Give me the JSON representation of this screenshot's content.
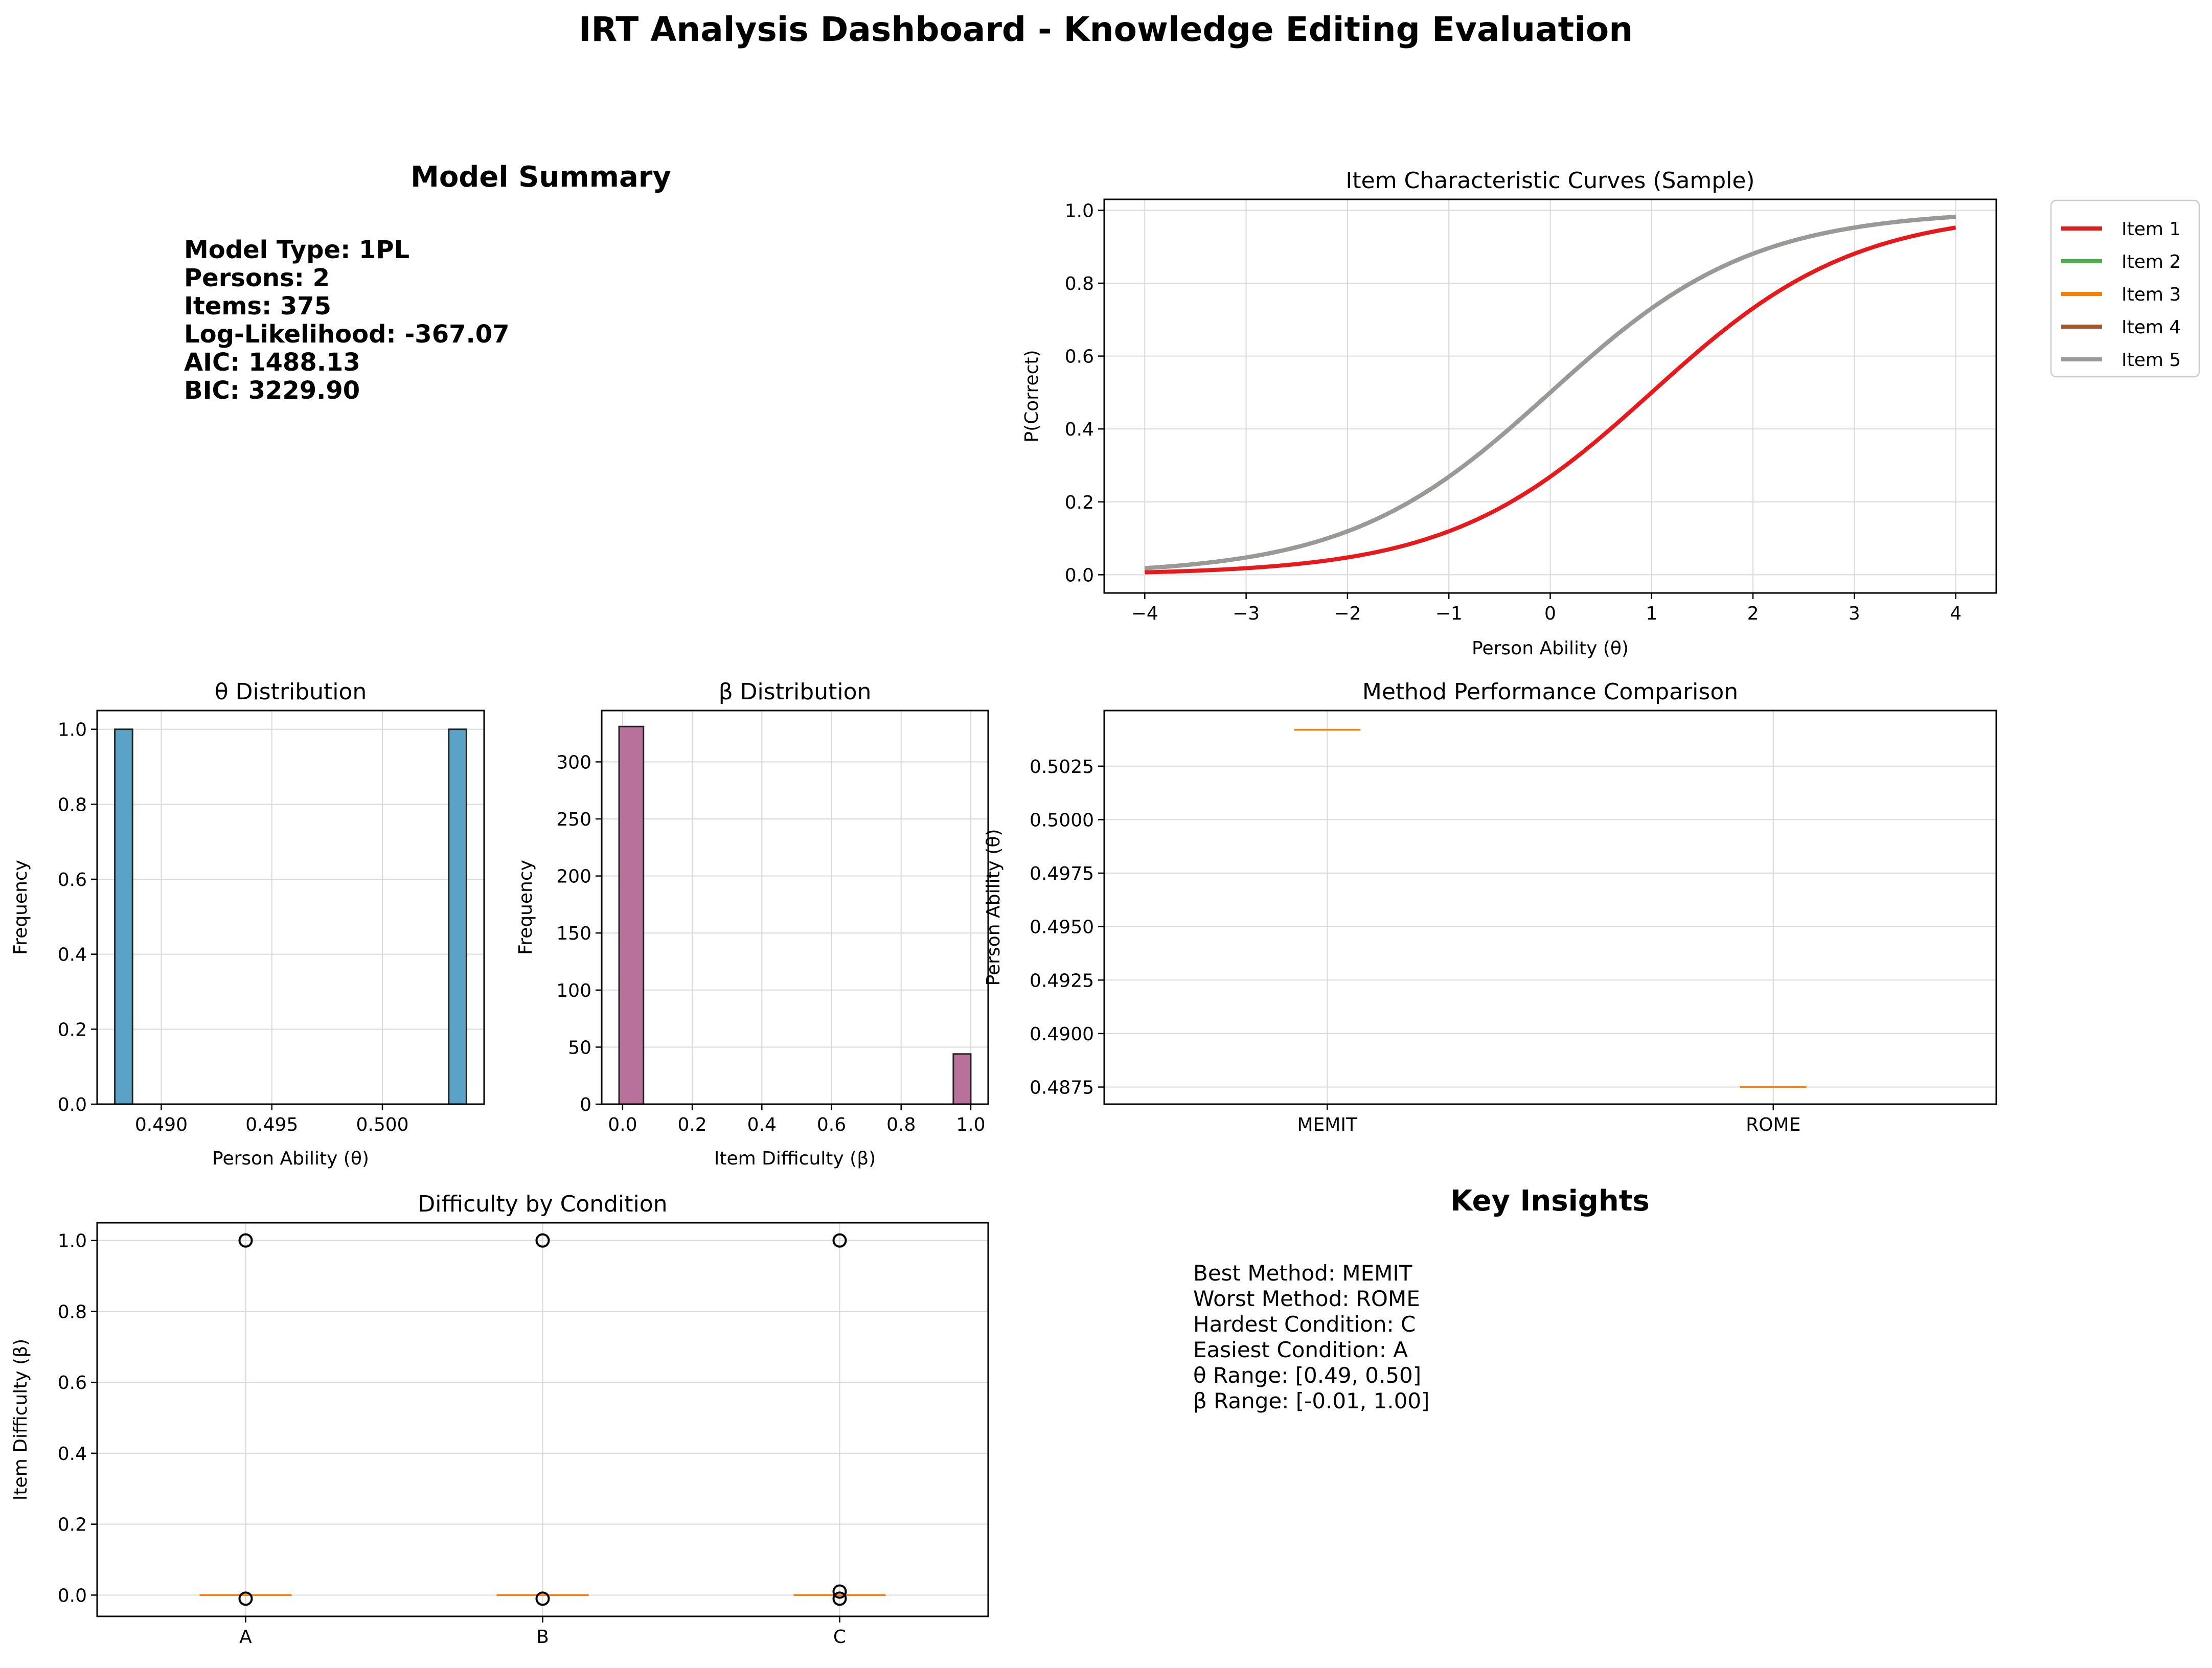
{
  "title": "IRT Analysis Dashboard - Knowledge Editing Evaluation",
  "model_summary": {
    "heading": "Model Summary",
    "lines": [
      "Model Type: 1PL",
      "Persons: 2",
      "Items: 375",
      "Log-Likelihood: -367.07",
      "AIC: 1488.13",
      "BIC: 3229.90"
    ]
  },
  "key_insights": {
    "heading": "Key Insights",
    "lines": [
      "Best Method: MEMIT",
      "Worst Method: ROME",
      "Hardest Condition: C",
      "Easiest Condition: A",
      "θ Range: [0.49, 0.50]",
      "β Range: [-0.01, 1.00]"
    ]
  },
  "chart_data": [
    {
      "id": "icc",
      "type": "line",
      "title": "Item Characteristic Curves (Sample)",
      "xlabel": "Person Ability (θ)",
      "ylabel": "P(Correct)",
      "xlim": [
        -4.4,
        4.4
      ],
      "ylim": [
        -0.05,
        1.03
      ],
      "xticks": [
        -4,
        -3,
        -2,
        -1,
        0,
        1,
        2,
        3,
        4
      ],
      "xtick_labels": [
        "−4",
        "−3",
        "−2",
        "−1",
        "0",
        "1",
        "2",
        "3",
        "4"
      ],
      "yticks": [
        0.0,
        0.2,
        0.4,
        0.6,
        0.8,
        1.0
      ],
      "ytick_labels": [
        "0.0",
        "0.2",
        "0.4",
        "0.6",
        "0.8",
        "1.0"
      ],
      "grid": true,
      "legend": "outside right",
      "series": [
        {
          "name": "Item 1",
          "color": "#e41a1c",
          "difficulty": 1.0
        },
        {
          "name": "Item 2",
          "color": "#4daf4a",
          "difficulty": 0.0
        },
        {
          "name": "Item 3",
          "color": "#ff7f00",
          "difficulty": 0.0
        },
        {
          "name": "Item 4",
          "color": "#a65628",
          "difficulty": 0.0
        },
        {
          "name": "Item 5",
          "color": "#999999",
          "difficulty": 0.0
        }
      ]
    },
    {
      "id": "theta",
      "type": "bar",
      "title": "θ Distribution",
      "xlabel": "Person Ability (θ)",
      "ylabel": "Frequency",
      "xlim": [
        0.4871,
        0.5046
      ],
      "ylim": [
        0,
        1.05
      ],
      "xticks": [
        0.49,
        0.495,
        0.5
      ],
      "xtick_labels": [
        "0.490",
        "0.495",
        "0.500"
      ],
      "yticks": [
        0.0,
        0.2,
        0.4,
        0.6,
        0.8,
        1.0
      ],
      "ytick_labels": [
        "0.0",
        "0.2",
        "0.4",
        "0.6",
        "0.8",
        "1.0"
      ],
      "color": "#5ba3c6",
      "bins": [
        {
          "x0": 0.4879,
          "x1": 0.4887,
          "count": 1
        },
        {
          "x0": 0.503,
          "x1": 0.5038,
          "count": 1
        }
      ]
    },
    {
      "id": "beta",
      "type": "bar",
      "title": "β Distribution",
      "xlabel": "Item Difficulty (β)",
      "ylabel": "Frequency",
      "xlim": [
        -0.06,
        1.05
      ],
      "ylim": [
        0,
        345
      ],
      "xticks": [
        0.0,
        0.2,
        0.4,
        0.6,
        0.8,
        1.0
      ],
      "xtick_labels": [
        "0.0",
        "0.2",
        "0.4",
        "0.6",
        "0.8",
        "1.0"
      ],
      "yticks": [
        0,
        50,
        100,
        150,
        200,
        250,
        300
      ],
      "ytick_labels": [
        "0",
        "50",
        "100",
        "150",
        "200",
        "250",
        "300"
      ],
      "color": "#b8719a",
      "bins": [
        {
          "x0": -0.01,
          "x1": 0.06,
          "count": 331
        },
        {
          "x0": 0.95,
          "x1": 1.0,
          "count": 44
        }
      ]
    },
    {
      "id": "method",
      "type": "box",
      "title": "Method Performance Comparison",
      "xlabel": "",
      "ylabel": "Person Ability (θ)",
      "ylim": [
        0.4867,
        0.5051
      ],
      "yticks": [
        0.4875,
        0.49,
        0.4925,
        0.495,
        0.4975,
        0.5,
        0.5025
      ],
      "ytick_labels": [
        "0.4875",
        "0.4900",
        "0.4925",
        "0.4950",
        "0.4975",
        "0.5000",
        "0.5025"
      ],
      "categories": [
        "MEMIT",
        "ROME"
      ],
      "medians": [
        0.5042,
        0.4875
      ]
    },
    {
      "id": "condition",
      "type": "box",
      "title": "Difficulty by Condition",
      "xlabel": "",
      "ylabel": "Item Difficulty (β)",
      "ylim": [
        -0.06,
        1.05
      ],
      "yticks": [
        0.0,
        0.2,
        0.4,
        0.6,
        0.8,
        1.0
      ],
      "ytick_labels": [
        "0.0",
        "0.2",
        "0.4",
        "0.6",
        "0.8",
        "1.0"
      ],
      "categories": [
        "A",
        "B",
        "C"
      ],
      "medians": [
        0.0,
        0.0,
        0.0
      ],
      "outliers": [
        [
          1.0,
          -0.01
        ],
        [
          1.0,
          -0.01
        ],
        [
          1.0,
          0.01,
          -0.01
        ]
      ]
    }
  ]
}
